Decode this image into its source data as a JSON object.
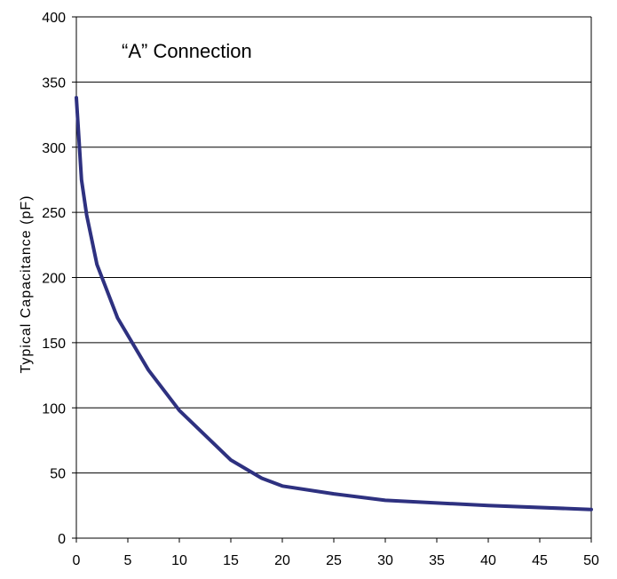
{
  "chart_data": {
    "type": "line",
    "title": "",
    "annotation": "“A” Connection",
    "xlabel": "",
    "ylabel": "Typical Capacitance (pF)",
    "xlim": [
      0,
      50
    ],
    "ylim": [
      0,
      400
    ],
    "xticks": [
      0,
      5,
      10,
      15,
      20,
      25,
      30,
      35,
      40,
      45,
      50
    ],
    "yticks": [
      0,
      50,
      100,
      150,
      200,
      250,
      300,
      350,
      400
    ],
    "grid": "horizontal",
    "legend": "none",
    "series": [
      {
        "color": "#2e3180",
        "x": [
          0,
          0.5,
          1,
          2,
          4,
          7,
          10,
          15,
          18,
          20,
          25,
          30,
          40,
          50
        ],
        "y": [
          338,
          275,
          248,
          210,
          169,
          129,
          98,
          60,
          46,
          40,
          34,
          29,
          25,
          22
        ]
      }
    ]
  }
}
